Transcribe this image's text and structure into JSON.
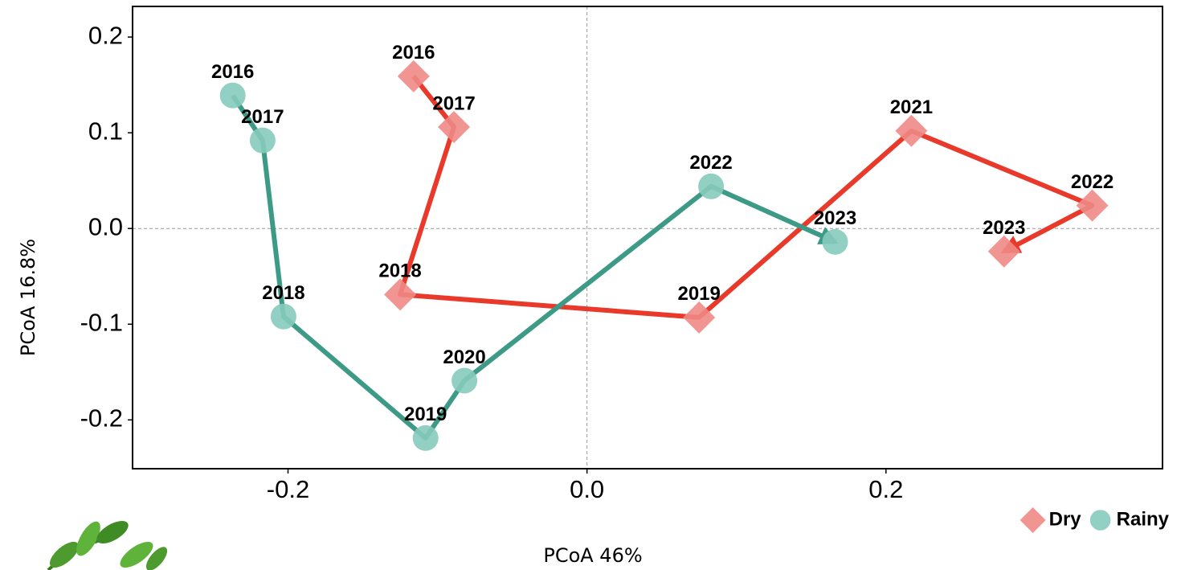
{
  "chart_data": {
    "type": "trajectory",
    "x_label": "PCoA 46%",
    "y_label": "PCoA 16.8%",
    "xlim": [
      -0.304,
      0.385
    ],
    "ylim": [
      -0.251,
      0.232
    ],
    "xticks": [
      -0.2,
      {
        "value": 0,
        "label": "0.0"
      },
      0.2
    ],
    "yticks": [
      0.2,
      0.1,
      {
        "value": 0,
        "label": "0.0"
      },
      -0.1,
      -0.2
    ],
    "reference_lines": {
      "x": 0,
      "y": 0
    },
    "legend": "bottom-right",
    "series": [
      {
        "name": "Dry",
        "marker": "diamond",
        "color": "#f08a86",
        "line_color": "#e8392a",
        "labels": [
          "2016",
          "2017",
          "2018",
          "2019",
          "2021",
          "2022",
          "2023"
        ],
        "x": [
          -0.116,
          -0.089,
          -0.125,
          0.075,
          0.217,
          0.338,
          0.279
        ],
        "y": [
          0.159,
          0.106,
          -0.069,
          -0.093,
          0.102,
          0.024,
          -0.024
        ]
      },
      {
        "name": "Rainy",
        "marker": "circle",
        "color": "#86cbbc",
        "line_color": "#3d9a86",
        "labels": [
          "2016",
          "2017",
          "2018",
          "2019",
          "2020",
          "2022",
          "2023"
        ],
        "x": [
          -0.237,
          -0.217,
          -0.203,
          -0.108,
          -0.082,
          0.083,
          0.166
        ],
        "y": [
          0.139,
          0.092,
          -0.092,
          -0.219,
          -0.159,
          0.044,
          -0.014
        ]
      }
    ]
  }
}
